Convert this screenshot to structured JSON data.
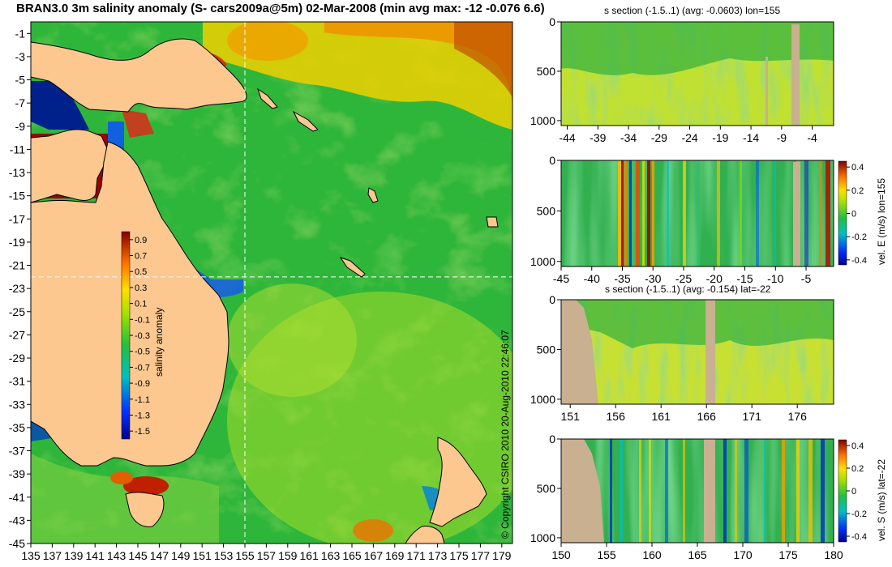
{
  "title": "BRAN3.0 3m salinity anomaly (S- cars2009a@5m) 02-Mar-2008 (min avg max: -12 -0.076 6.6)",
  "copyright": "© Copyright CSIRO 2010   20-Aug-2010 22:46:07",
  "chart_data": [
    {
      "type": "heatmap",
      "name": "map",
      "x_ticks": [
        "135",
        "137",
        "139",
        "141",
        "143",
        "145",
        "147",
        "149",
        "151",
        "153",
        "155",
        "157",
        "159",
        "161",
        "163",
        "165",
        "167",
        "169",
        "171",
        "173",
        "175",
        "177",
        "179"
      ],
      "y_ticks": [
        "-1",
        "-3",
        "-5",
        "-7",
        "-9",
        "-11",
        "-13",
        "-15",
        "-17",
        "-19",
        "-21",
        "-23",
        "-25",
        "-27",
        "-29",
        "-31",
        "-33",
        "-35",
        "-37",
        "-39",
        "-41",
        "-43",
        "-45"
      ],
      "xlim": [
        135,
        180
      ],
      "ylim": [
        -45,
        0
      ],
      "crosshair": {
        "lon": 155,
        "lat": -22
      },
      "colorbar": {
        "label": "salinity anomaly",
        "ticks": [
          "0.9",
          "0.7",
          "0.5",
          "0.3",
          "0.1",
          "-0.1",
          "-0.3",
          "-0.5",
          "-0.7",
          "-0.9",
          "-1.1",
          "-1.3",
          "-1.5"
        ],
        "range": [
          -1.6,
          1.0
        ]
      }
    },
    {
      "type": "heatmap",
      "name": "s-section-lon155",
      "title": "s section (-1.5..1) (avg: -0.0603) lon=155",
      "x_ticks": [
        "-44",
        "-39",
        "-34",
        "-29",
        "-24",
        "-19",
        "-14",
        "-9",
        "-4"
      ],
      "y_ticks": [
        "0",
        "500",
        "1000"
      ],
      "xlim": [
        -45,
        -0.5
      ],
      "ylim": [
        0,
        1050
      ]
    },
    {
      "type": "heatmap",
      "name": "vel-e-section-lon155",
      "x_ticks": [
        "-45",
        "-40",
        "-35",
        "-30",
        "-25",
        "-20",
        "-15",
        "-10",
        "-5"
      ],
      "y_ticks": [
        "0",
        "500",
        "1000"
      ],
      "xlim": [
        -45,
        -0.5
      ],
      "ylim": [
        0,
        1050
      ],
      "colorbar": {
        "label": "vel. E (m/s) lon=155",
        "ticks": [
          "0.4",
          "0.2",
          "0",
          "-0.2",
          "-0.4"
        ],
        "range": [
          -0.45,
          0.45
        ]
      }
    },
    {
      "type": "heatmap",
      "name": "s-section-lat-22",
      "title": "s section (-1.5..1) (avg: -0.154) lat=-22",
      "x_ticks": [
        "151",
        "156",
        "161",
        "166",
        "171",
        "176"
      ],
      "y_ticks": [
        "0",
        "500",
        "1000"
      ],
      "xlim": [
        150,
        180
      ],
      "ylim": [
        0,
        1050
      ]
    },
    {
      "type": "heatmap",
      "name": "vel-s-section-lat-22",
      "x_ticks": [
        "150",
        "155",
        "160",
        "165",
        "170",
        "175",
        "180"
      ],
      "y_ticks": [
        "0",
        "500",
        "1000"
      ],
      "xlim": [
        150,
        180
      ],
      "ylim": [
        0,
        1050
      ],
      "colorbar": {
        "label": "vel. S (m/s) lat=-22",
        "ticks": [
          "0.4",
          "0.2",
          "0",
          "-0.2",
          "-0.4"
        ],
        "range": [
          -0.45,
          0.45
        ]
      }
    }
  ]
}
